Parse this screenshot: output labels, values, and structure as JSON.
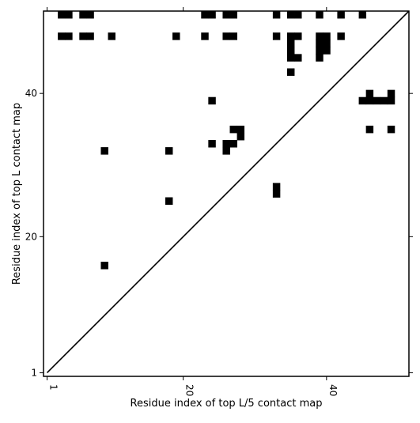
{
  "chart_data": {
    "type": "heatmap",
    "xlabel": "Residue index of top L/5 contact map",
    "ylabel": "Residue index of top L contact map",
    "xlim": [
      0.5,
      51.5
    ],
    "ylim": [
      0.5,
      51.5
    ],
    "xticks": [
      1,
      20,
      40
    ],
    "yticks": [
      1,
      20,
      40
    ],
    "grid": false,
    "diagonal_line": true,
    "cell_color": "#000000",
    "background": "#ffffff",
    "upper_cells": [
      [
        3,
        51
      ],
      [
        4,
        51
      ],
      [
        6,
        51
      ],
      [
        7,
        51
      ],
      [
        23,
        51
      ],
      [
        24,
        51
      ],
      [
        26,
        51
      ],
      [
        27,
        51
      ],
      [
        33,
        51
      ],
      [
        35,
        51
      ],
      [
        36,
        51
      ],
      [
        39,
        51
      ],
      [
        42,
        51
      ],
      [
        45,
        51
      ],
      [
        3,
        48
      ],
      [
        4,
        48
      ],
      [
        6,
        48
      ],
      [
        7,
        48
      ],
      [
        10,
        48
      ],
      [
        19,
        48
      ],
      [
        23,
        48
      ],
      [
        26,
        48
      ],
      [
        27,
        48
      ],
      [
        33,
        48
      ],
      [
        35,
        48
      ],
      [
        36,
        48
      ],
      [
        39,
        48
      ],
      [
        40,
        48
      ],
      [
        42,
        48
      ],
      [
        35,
        47
      ],
      [
        39,
        47
      ],
      [
        40,
        47
      ],
      [
        35,
        46
      ],
      [
        39,
        46
      ],
      [
        40,
        46
      ],
      [
        35,
        45
      ],
      [
        36,
        45
      ],
      [
        39,
        45
      ],
      [
        35,
        43
      ]
    ],
    "lower_cells": [
      [
        24,
        39
      ],
      [
        46,
        40
      ],
      [
        49,
        40
      ],
      [
        45,
        39
      ],
      [
        46,
        39
      ],
      [
        47,
        39
      ],
      [
        48,
        39
      ],
      [
        49,
        39
      ],
      [
        27,
        35
      ],
      [
        28,
        35
      ],
      [
        46,
        35
      ],
      [
        49,
        35
      ],
      [
        28,
        34
      ],
      [
        24,
        33
      ],
      [
        26,
        33
      ],
      [
        27,
        33
      ],
      [
        9,
        32
      ],
      [
        18,
        32
      ],
      [
        26,
        32
      ],
      [
        33,
        27
      ],
      [
        33,
        26
      ],
      [
        18,
        25
      ],
      [
        9,
        16
      ]
    ]
  }
}
